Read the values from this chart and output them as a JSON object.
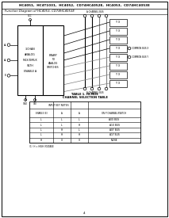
{
  "title": "HC4051,  HC4T1031,  HC4052,  CD74HC4052E,  HC4053,  CD74HC4053E",
  "background": "#ffffff",
  "subtitle": "Function Diagram of HC4053, CD74HC4053E",
  "table_title1": "TABLE 1. HCMOS",
  "table_title2": "CHANNEL SELECTION TABLE",
  "table_group_header": "INPUT KEY NOTES",
  "col_headers": [
    "ENABLE (E)",
    "A₀",
    "A₁",
    "ON P CHANNEL/SWITCH"
  ],
  "table_rows": [
    [
      "L",
      "L",
      "L",
      "A0X BUS"
    ],
    [
      "L",
      "L",
      "H",
      "A1X BUS"
    ],
    [
      "L",
      "H",
      "L",
      "A0Y BUS"
    ],
    [
      "L",
      "H",
      "H",
      "A1Y BUS"
    ],
    [
      "H",
      "X",
      "X",
      "NONE"
    ]
  ],
  "footnote": "(1)  H = HIGH VOLTAGE",
  "page_num": "4",
  "ic_left_label": [
    "3-CHAN",
    "ANALOG",
    "MUX/DMUX",
    "WITH",
    "ENABLE A"
  ],
  "ic_right_label": [
    "BINARY",
    "TO",
    "ANALOG",
    "SWITCHES"
  ],
  "switch_labels": [
    "Y X",
    "Y X",
    "Y X",
    "Y X",
    "Y X",
    "Y X",
    "Y X",
    "Y X"
  ],
  "top_bus_label": "A CHANNEL BUS",
  "bot_bus_label": "A CHANNEL BUS",
  "common_bus_x": "COMMON BUS X",
  "common_bus_y": "COMMON BUS Y",
  "input_labels": [
    "A₀",
    "A₁",
    "E"
  ],
  "vcc_label": "VCC",
  "gnd_label": "GND",
  "vee_label": "VEE"
}
